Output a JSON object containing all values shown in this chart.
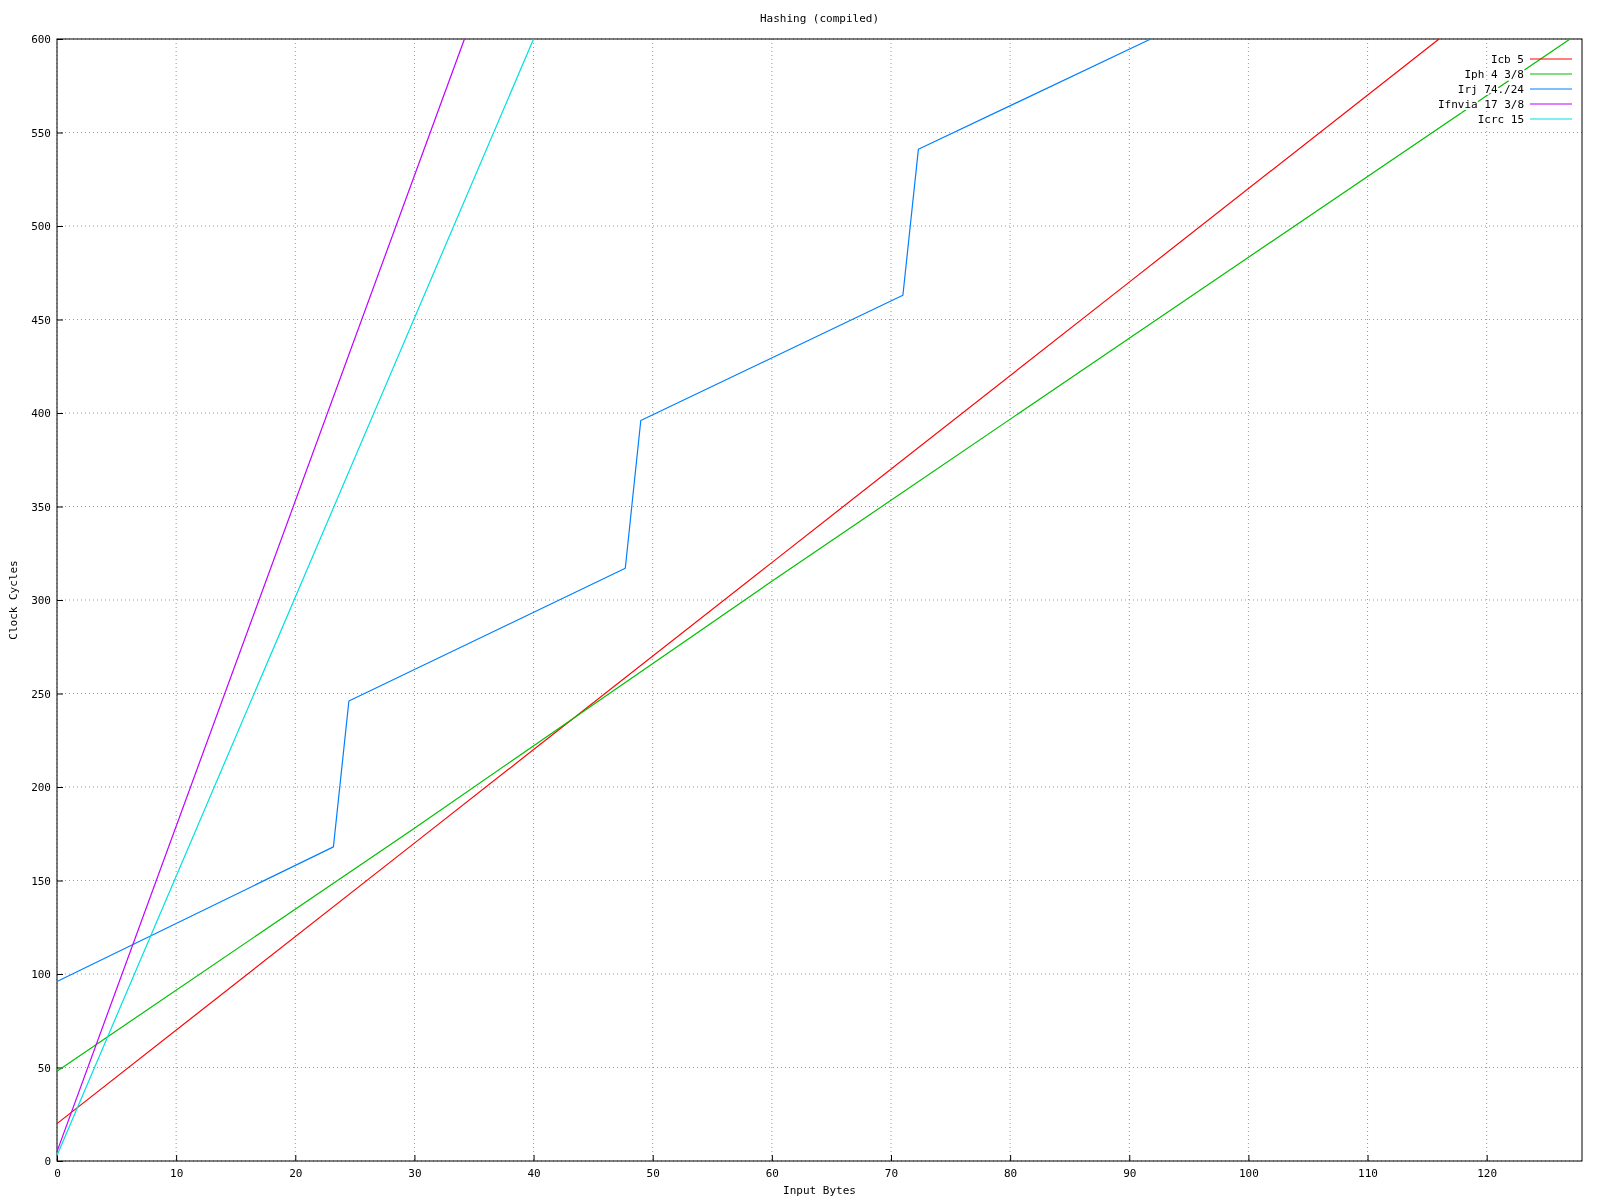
{
  "chart_data": {
    "type": "line",
    "title": "Hashing (compiled)",
    "xlabel": "Input Bytes",
    "ylabel": "Clock Cycles",
    "xlim": [
      0,
      128
    ],
    "ylim": [
      0,
      600
    ],
    "xticks": [
      0,
      10,
      20,
      30,
      40,
      50,
      60,
      70,
      80,
      90,
      100,
      110,
      120
    ],
    "yticks": [
      0,
      50,
      100,
      150,
      200,
      250,
      300,
      350,
      400,
      450,
      500,
      550,
      600
    ],
    "grid": true,
    "legend": "top right",
    "series": [
      {
        "name": "Icb 5",
        "color": "#ff0000",
        "x": [
          0,
          30,
          60,
          90,
          116
        ],
        "values": [
          20,
          170,
          320,
          470,
          600
        ]
      },
      {
        "name": "Iph 4 3/8",
        "color": "#00c000",
        "x": [
          0,
          30,
          60,
          90,
          127
        ],
        "values": [
          48,
          178,
          310,
          440,
          600
        ]
      },
      {
        "name": "Irj 74./24",
        "color": "#0080ff",
        "x": [
          0,
          23.2,
          24.5,
          47.7,
          49,
          71,
          72.3,
          91.8
        ],
        "values": [
          96,
          168,
          246,
          317,
          396,
          463,
          541,
          600
        ]
      },
      {
        "name": "Ifnvia 17 3/8",
        "color": "#c000ff",
        "x": [
          0,
          34.2
        ],
        "values": [
          5,
          600
        ]
      },
      {
        "name": "Icrc 15",
        "color": "#00e0e0",
        "x": [
          0,
          40
        ],
        "values": [
          3,
          600
        ]
      }
    ]
  }
}
